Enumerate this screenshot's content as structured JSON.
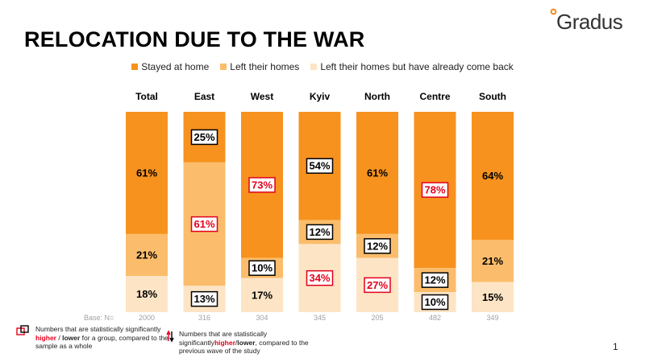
{
  "title": "RELOCATION DUE TO THE WAR",
  "logo": {
    "text": "Gradus",
    "accent": "#f08a1c"
  },
  "legend": [
    {
      "label": "Stayed at home",
      "color": "#f7921e"
    },
    {
      "label": "Left their homes",
      "color": "#fbbd6b"
    },
    {
      "label": "Left their homes but have already come back",
      "color": "#fde4c4"
    }
  ],
  "notes": {
    "group_prefix": "Numbers that are statistically significantly ",
    "group_higher": "higher",
    "group_sep": " / ",
    "group_lower": "lower",
    "group_suffix": " for a group, compared to the sample as a whole",
    "wave_prefix": "Numbers that are statistically significantly",
    "wave_higher": "higher",
    "wave_sep": "/",
    "wave_lower": "lower",
    "wave_suffix": ", compared to the previous wave of the study"
  },
  "page_number": "1",
  "chart_data": {
    "type": "bar",
    "stacked": true,
    "percent": true,
    "categories": [
      "Total",
      "East",
      "West",
      "Kyiv",
      "North",
      "Centre",
      "South"
    ],
    "series": [
      {
        "name": "Stayed at home",
        "color": "#f7921e",
        "values": [
          61,
          25,
          73,
          54,
          61,
          78,
          64
        ]
      },
      {
        "name": "Left their homes",
        "color": "#fbbd6b",
        "values": [
          21,
          61,
          10,
          12,
          12,
          12,
          21
        ]
      },
      {
        "name": "Left their homes but have already come back",
        "color": "#fde4c4",
        "values": [
          18,
          13,
          17,
          34,
          27,
          10,
          15
        ]
      }
    ],
    "highlights": [
      [
        "none",
        "box",
        "box-red",
        "box",
        "none",
        "box-red",
        "none"
      ],
      [
        "none",
        "box-red",
        "box",
        "box",
        "box",
        "box",
        "none"
      ],
      [
        "none",
        "box",
        "none",
        "box-red",
        "box-red",
        "box",
        "none"
      ]
    ],
    "base_label": "Base: N=",
    "base_values": [
      "2000",
      "316",
      "304",
      "345",
      "205",
      "482",
      "349"
    ],
    "ylim": [
      0,
      100
    ]
  }
}
